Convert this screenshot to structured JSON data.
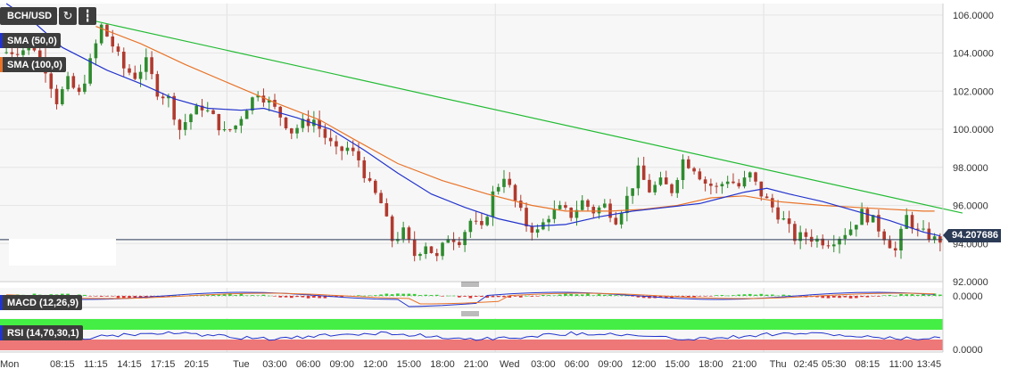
{
  "toolbar": {
    "pair": "BCH/USD",
    "refresh_icon": "refresh-icon",
    "bars_icon": "bar-chart-icon"
  },
  "legends": {
    "sma50": "SMA (50,0)",
    "sma100": "SMA (100,0)",
    "macd": "MACD (12,26,9)",
    "rsi": "RSI (14,70,30,1)"
  },
  "colors": {
    "up": "#2e8b2e",
    "down": "#b03a2e",
    "sma50": "#2233cc",
    "sma100": "#e8742a",
    "trend": "#22bb33",
    "priceline": "#2b3a55",
    "rsi_over": "#44ee44",
    "rsi_under": "#ee7777"
  },
  "chart_data": [
    {
      "type": "candlestick",
      "title": "BCH/USD",
      "xlabel": "",
      "ylabel": "",
      "ylim": [
        92,
        106.6
      ],
      "y_ticks": [
        "92.0000",
        "94.0000",
        "96.0000",
        "98.0000",
        "100.0000",
        "102.0000",
        "104.0000",
        "106.0000"
      ],
      "x_ticks": [
        "Mon",
        "08:15",
        "11:15",
        "14:15",
        "17:15",
        "20:15",
        "Tue",
        "03:00",
        "06:00",
        "09:00",
        "12:00",
        "15:00",
        "18:00",
        "21:00",
        "Wed",
        "03:00",
        "06:00",
        "09:00",
        "12:00",
        "15:00",
        "18:00",
        "21:00",
        "Thu",
        "02:45",
        "05:30",
        "08:15",
        "11:00",
        "13:45"
      ],
      "last_price": "94.207686",
      "price_key_points": [
        [
          0,
          104.0
        ],
        [
          6,
          104.3
        ],
        [
          8,
          103.2
        ],
        [
          10,
          101.5
        ],
        [
          12,
          102.5
        ],
        [
          14,
          101.8
        ],
        [
          16,
          103.5
        ],
        [
          18,
          105.4
        ],
        [
          20,
          104.4
        ],
        [
          22,
          103.2
        ],
        [
          24,
          102.8
        ],
        [
          26,
          103.5
        ],
        [
          28,
          102.0
        ],
        [
          30,
          101.6
        ],
        [
          32,
          100.0
        ],
        [
          34,
          100.8
        ],
        [
          36,
          101.2
        ],
        [
          38,
          100.6
        ],
        [
          40,
          99.8
        ],
        [
          42,
          100.2
        ],
        [
          44,
          101.2
        ],
        [
          46,
          102.0
        ],
        [
          48,
          101.4
        ],
        [
          50,
          100.7
        ],
        [
          52,
          99.9
        ],
        [
          54,
          100.3
        ],
        [
          56,
          100.5
        ],
        [
          58,
          99.6
        ],
        [
          60,
          98.8
        ],
        [
          62,
          99.0
        ],
        [
          64,
          98.4
        ],
        [
          66,
          97.0
        ],
        [
          68,
          96.1
        ],
        [
          70,
          94.2
        ],
        [
          72,
          94.6
        ],
        [
          74,
          93.4
        ],
        [
          76,
          94.0
        ],
        [
          78,
          93.2
        ],
        [
          80,
          94.4
        ],
        [
          82,
          94.2
        ],
        [
          84,
          95.2
        ],
        [
          86,
          94.7
        ],
        [
          88,
          96.6
        ],
        [
          90,
          97.6
        ],
        [
          92,
          96.2
        ],
        [
          94,
          95.0
        ],
        [
          96,
          94.6
        ],
        [
          98,
          95.5
        ],
        [
          100,
          95.8
        ],
        [
          102,
          95.5
        ],
        [
          104,
          96.2
        ],
        [
          106,
          95.7
        ],
        [
          108,
          96.0
        ],
        [
          110,
          95.3
        ],
        [
          112,
          96.4
        ],
        [
          114,
          97.8
        ],
        [
          116,
          96.8
        ],
        [
          118,
          97.2
        ],
        [
          120,
          96.8
        ],
        [
          122,
          98.4
        ],
        [
          124,
          98.0
        ],
        [
          126,
          97.2
        ],
        [
          128,
          96.9
        ],
        [
          130,
          97.4
        ],
        [
          132,
          97.0
        ],
        [
          134,
          97.6
        ],
        [
          136,
          96.6
        ],
        [
          138,
          95.9
        ],
        [
          140,
          95.2
        ],
        [
          142,
          94.3
        ],
        [
          144,
          94.4
        ],
        [
          146,
          94.2
        ],
        [
          148,
          94.1
        ],
        [
          150,
          94.4
        ],
        [
          152,
          94.8
        ],
        [
          154,
          95.6
        ],
        [
          156,
          95.2
        ],
        [
          158,
          94.4
        ],
        [
          160,
          93.6
        ],
        [
          162,
          95.4
        ],
        [
          164,
          94.6
        ],
        [
          166,
          94.4
        ],
        [
          167,
          94.2
        ]
      ],
      "sma50_key_points": [
        [
          0,
          106.6
        ],
        [
          5,
          105.6
        ],
        [
          10,
          104.3
        ],
        [
          18,
          103.1
        ],
        [
          24,
          102.4
        ],
        [
          30,
          101.6
        ],
        [
          36,
          101.1
        ],
        [
          42,
          101.0
        ],
        [
          46,
          101.1
        ],
        [
          52,
          100.6
        ],
        [
          58,
          100.0
        ],
        [
          64,
          98.9
        ],
        [
          70,
          97.7
        ],
        [
          76,
          96.6
        ],
        [
          82,
          95.9
        ],
        [
          88,
          95.3
        ],
        [
          94,
          94.9
        ],
        [
          100,
          95.0
        ],
        [
          106,
          95.4
        ],
        [
          112,
          95.7
        ],
        [
          118,
          95.9
        ],
        [
          124,
          96.1
        ],
        [
          128,
          96.4
        ],
        [
          132,
          96.7
        ],
        [
          136,
          96.9
        ],
        [
          140,
          96.6
        ],
        [
          146,
          96.2
        ],
        [
          152,
          95.7
        ],
        [
          158,
          95.2
        ],
        [
          164,
          94.6
        ],
        [
          167,
          94.4
        ]
      ],
      "sma100_key_points": [
        [
          16,
          105.4
        ],
        [
          24,
          104.5
        ],
        [
          32,
          103.4
        ],
        [
          40,
          102.4
        ],
        [
          48,
          101.4
        ],
        [
          56,
          100.5
        ],
        [
          62,
          99.5
        ],
        [
          70,
          98.2
        ],
        [
          78,
          97.3
        ],
        [
          86,
          96.6
        ],
        [
          94,
          96.0
        ],
        [
          100,
          95.7
        ],
        [
          108,
          95.7
        ],
        [
          114,
          95.8
        ],
        [
          120,
          96.0
        ],
        [
          126,
          96.4
        ],
        [
          132,
          96.5
        ],
        [
          138,
          96.2
        ],
        [
          146,
          96.0
        ],
        [
          152,
          95.9
        ],
        [
          158,
          95.8
        ],
        [
          164,
          95.7
        ],
        [
          166,
          95.7
        ]
      ],
      "trendline": [
        [
          14,
          105.8
        ],
        [
          171,
          95.6
        ]
      ]
    },
    {
      "type": "line",
      "title": "MACD (12,26,9)",
      "y_ticks": [
        "0.0000"
      ],
      "ylim": [
        -1.5,
        1.0
      ]
    },
    {
      "type": "line",
      "title": "RSI (14,70,30,1)",
      "y_ticks": [
        "0.0000"
      ],
      "ylim": [
        0,
        100
      ]
    }
  ]
}
